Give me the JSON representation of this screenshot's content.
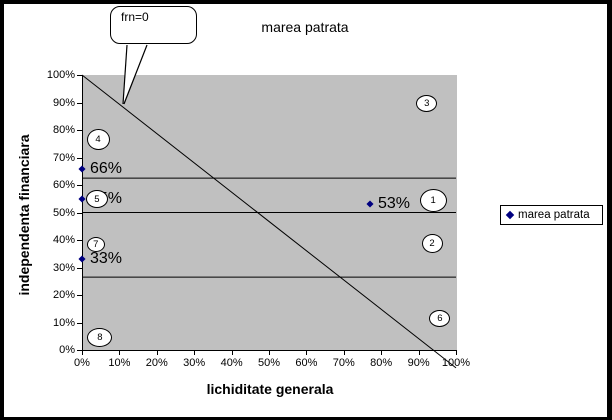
{
  "chart_data": {
    "type": "scatter",
    "title": "marea patrata",
    "xlabel": "lichiditate generala",
    "ylabel": "independenta financiara",
    "xlim": [
      0,
      100
    ],
    "ylim": [
      0,
      100
    ],
    "x_ticks": [
      "0%",
      "10%",
      "20%",
      "30%",
      "40%",
      "50%",
      "60%",
      "70%",
      "80%",
      "90%",
      "100%"
    ],
    "y_ticks": [
      "100%",
      "90%",
      "80%",
      "70%",
      "60%",
      "50%",
      "40%",
      "30%",
      "20%",
      "10%",
      "0%"
    ],
    "plot_background": "#c0c0c0",
    "marker_color": "#000080",
    "legend": {
      "label": "marea patrata",
      "position": "right"
    },
    "series": [
      {
        "name": "marea patrata",
        "marker": "diamond",
        "points": [
          {
            "x": 0,
            "y": 66,
            "label": "66%"
          },
          {
            "x": 0,
            "y": 55,
            "label": "55%"
          },
          {
            "x": 0,
            "y": 33,
            "label": "33%"
          },
          {
            "x": 77,
            "y": 53,
            "label": "53%"
          }
        ]
      }
    ],
    "reference_lines": {
      "horizontal_values": [
        62.5,
        50,
        26.5
      ],
      "diagonal": {
        "x1": 0,
        "y1": 100,
        "x2": 100,
        "y2": -6.5
      }
    },
    "annotations": {
      "callout": {
        "text": "frn=0"
      },
      "region_markers": [
        {
          "label": "1",
          "x": 93.9,
          "y": 54.5,
          "w": 27,
          "h": 23
        },
        {
          "label": "2",
          "x": 93.6,
          "y": 38.9,
          "w": 21,
          "h": 19
        },
        {
          "label": "3",
          "x": 92.2,
          "y": 89.8,
          "w": 21,
          "h": 17
        },
        {
          "label": "4",
          "x": 4.3,
          "y": 76.4,
          "w": 23,
          "h": 21
        },
        {
          "label": "5",
          "x": 4.0,
          "y": 54.9,
          "w": 22,
          "h": 18
        },
        {
          "label": "6",
          "x": 95.7,
          "y": 11.6,
          "w": 21,
          "h": 17
        },
        {
          "label": "7",
          "x": 3.7,
          "y": 38.5,
          "w": 18,
          "h": 15
        },
        {
          "label": "8",
          "x": 4.8,
          "y": 4.7,
          "w": 25,
          "h": 19
        }
      ]
    }
  }
}
